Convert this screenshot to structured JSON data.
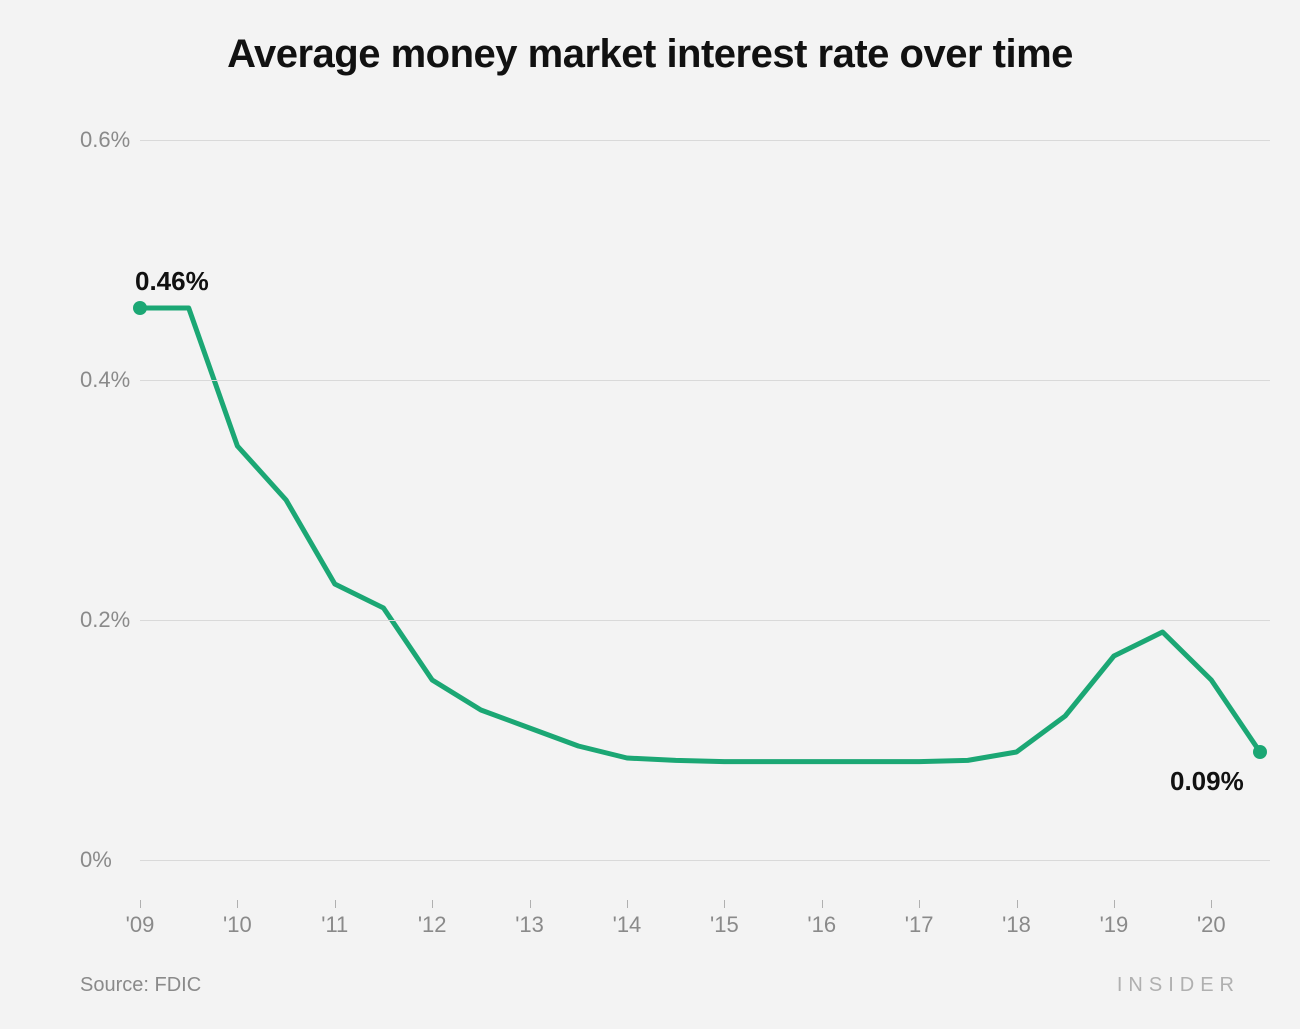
{
  "chart": {
    "type": "line",
    "title": "Average money market interest rate over time",
    "background_color": "#f3f3f3",
    "grid_color": "#d9d9d9",
    "axis_label_color": "#8a8a8a",
    "title_color": "#111111",
    "title_fontsize": 40,
    "axis_fontsize": 22,
    "data_label_fontsize": 26,
    "line_color": "#1ba774",
    "line_width": 5,
    "marker_color": "#1ba774",
    "marker_radius": 7,
    "y_axis": {
      "min": 0,
      "max": 0.6,
      "ticks": [
        0,
        0.2,
        0.4,
        0.6
      ],
      "tick_labels": [
        "0%",
        "0.2%",
        "0.4%",
        "0.6%"
      ]
    },
    "x_axis": {
      "min": 2009,
      "max": 2020.5,
      "ticks": [
        2009,
        2010,
        2011,
        2012,
        2013,
        2014,
        2015,
        2016,
        2017,
        2018,
        2019,
        2020
      ],
      "tick_labels": [
        "'09",
        "'10",
        "'11",
        "'12",
        "'13",
        "'14",
        "'15",
        "'16",
        "'17",
        "'18",
        "'19",
        "'20"
      ]
    },
    "series": {
      "x": [
        2009,
        2009.5,
        2010,
        2010.5,
        2011,
        2011.5,
        2012,
        2012.5,
        2013,
        2013.5,
        2014,
        2014.5,
        2015,
        2015.5,
        2016,
        2016.5,
        2017,
        2017.5,
        2018,
        2018.5,
        2019,
        2019.5,
        2020,
        2020.5
      ],
      "y": [
        0.46,
        0.46,
        0.345,
        0.3,
        0.23,
        0.21,
        0.15,
        0.125,
        0.11,
        0.095,
        0.085,
        0.083,
        0.082,
        0.082,
        0.082,
        0.082,
        0.082,
        0.083,
        0.09,
        0.12,
        0.17,
        0.19,
        0.15,
        0.09
      ]
    },
    "endpoint_markers": [
      {
        "x": 2009,
        "y": 0.46
      },
      {
        "x": 2020.5,
        "y": 0.09
      }
    ],
    "data_labels": [
      {
        "text": "0.46%",
        "x": 2009,
        "y": 0.46,
        "anchor": "above"
      },
      {
        "text": "0.09%",
        "x": 2020.5,
        "y": 0.09,
        "anchor": "below-right"
      }
    ]
  },
  "footer": {
    "source_label": "Source:",
    "source_value": "FDIC",
    "brand": "INSIDER"
  }
}
